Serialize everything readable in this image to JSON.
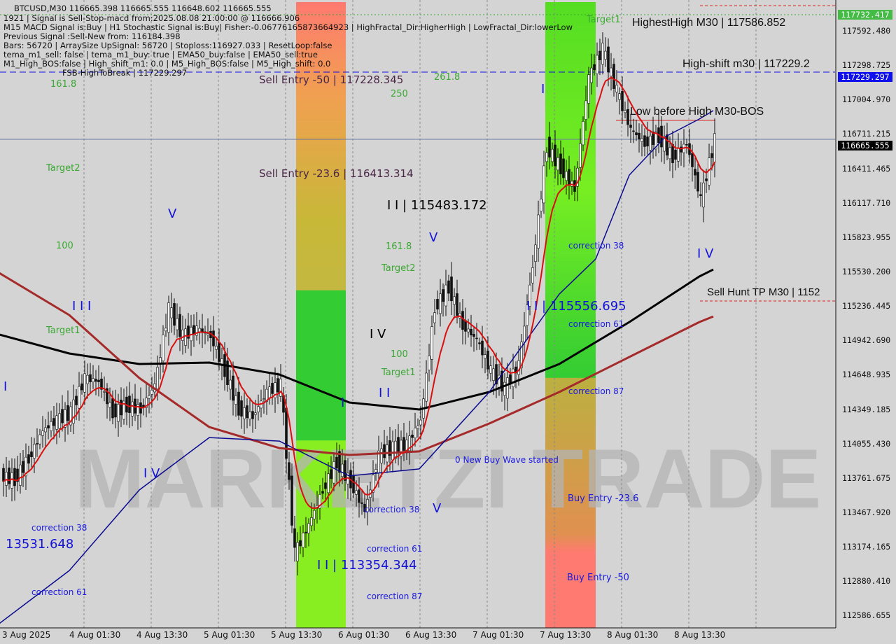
{
  "header": {
    "symbol_line": "BTCUSD,M30  116665.398 116665.555 116648.602 116665.555",
    "info_lines": [
      "1921 | Signal is Sell-Stop-macd from:2025.08.08 21:00:00 @ 116666.906",
      "M15 MACD Signal is:Buy | H1 Stochastic Signal is:Buy| Fisher:-0.06776165873664923 | HighFractal_Dir:HigherHigh | LowFractal_Dir:lowerLow",
      "Previous Signal :Sell-New from: 116184.398",
      "Bars: 56720 | ArraySize UpSignal: 56720 | Stoploss:116927.033 | ResetLoop:false",
      "tema_m1_sell: false | tema_m1_buy: true | EMA50_buy:false | EMA50_sell:true",
      "M1_High_BOS:false | High_shift_m1: 0.0 | M5_High_BOS:false | M5_High_shift: 0.0"
    ],
    "fsb_label": "FSB-HighToBreak | 117229.297"
  },
  "watermark": "MARKETZI TRADE",
  "annotations": {
    "highest_high": "HighestHigh   M30 | 117586.852",
    "high_shift": "High-shift m30 | 117229.2",
    "low_before_high": "Low before High   M30-BOS",
    "sell_hunt": "Sell Hunt TP M30 | 1152",
    "sell_entry_50": "Sell Entry -50 | 117228.345",
    "sell_entry_236": "Sell Entry -23.6 | 116413.314",
    "wave_115483": "I I | 115483.172",
    "wave_115556": "I I | 115556.695",
    "wave_113354": "I I | 113354.344",
    "left_price": "13531.648",
    "new_buy_wave": "0 New Buy Wave started",
    "buy_entry_236": "Buy Entry -23.6",
    "buy_entry_50": "Buy Entry -50",
    "corrections": [
      "correction 38",
      "correction 61",
      "correction 38",
      "correction 61",
      "correction 87",
      "correction 38",
      "correction 61",
      "correction 87"
    ],
    "fib_labels": [
      "161.8",
      "Target2",
      "100",
      "Target1",
      "261.8",
      "250",
      "161.8",
      "Target2",
      "100",
      "Target1",
      "Target1"
    ],
    "wave_labels": [
      "V",
      "I I I",
      "I V",
      "I V",
      "I I",
      "V",
      "I",
      "I V",
      "I",
      "I",
      "V"
    ]
  },
  "colors": {
    "background": "#d4d4d4",
    "candle": "#111111",
    "ema_fast": "#d81010",
    "ma_black": "#000000",
    "ma_brown": "#a52a2a",
    "ma_navy": "#0a0a90",
    "zone_green": "#33cc33",
    "zone_lime": "#88ee22",
    "zone_red": "#ff7070",
    "label_green": "#44bb44",
    "label_blue": "#0000ff",
    "label_black": "#000000"
  },
  "chart_data": {
    "type": "candlestick",
    "title": "BTCUSD,M30",
    "ylim": [
      112440,
      117900
    ],
    "y_ticks": [
      "117592.480",
      "117298.725",
      "117004.970",
      "116711.215",
      "116411.465",
      "116117.710",
      "115823.955",
      "115530.200",
      "115236.445",
      "114942.690",
      "114648.935",
      "114349.185",
      "114055.430",
      "113761.675",
      "113467.920",
      "113174.165",
      "112880.410",
      "112586.655"
    ],
    "x_ticks": [
      "3 Aug 2025",
      "4 Aug 01:30",
      "4 Aug 13:30",
      "5 Aug 01:30",
      "5 Aug 13:30",
      "6 Aug 01:30",
      "6 Aug 13:30",
      "7 Aug 01:30",
      "7 Aug 13:30",
      "8 Aug 01:30",
      "8 Aug 13:30"
    ],
    "price_tags": {
      "top_green": "117732.417",
      "fsb_blue": "117229.297",
      "current": "116665.555"
    },
    "levels": {
      "fsb_high_to_break": 117229.297,
      "current": 116665.555,
      "top": 117732.417
    },
    "closes_start": "2025-08-03 09:45",
    "closes_step_minutes": 150,
    "closes": [
      113786,
      113756,
      113936,
      114175,
      114265,
      114325,
      114625,
      114595,
      114325,
      114385,
      114355,
      114565,
      115224,
      114985,
      115045,
      114985,
      114685,
      114355,
      114295,
      114505,
      114565,
      113126,
      113366,
      113666,
      113906,
      113726,
      113486,
      113966,
      114025,
      114055,
      114265,
      115224,
      115404,
      115074,
      114955,
      114685,
      114535,
      114745,
      115584,
      116603,
      116423,
      116244,
      117203,
      117443,
      117083,
      116753,
      116633,
      116693,
      116513,
      116633,
      116154,
      116665
    ],
    "ma_series": [
      {
        "color": "#000000",
        "points": [
          [
            "2025-08-03 09:00",
            114997
          ],
          [
            "2025-08-03 21:30",
            114835
          ],
          [
            "2025-08-04 10:00",
            114745
          ],
          [
            "2025-08-04 22:30",
            114757
          ],
          [
            "2025-08-05 11:00",
            114655
          ],
          [
            "2025-08-05 23:30",
            114415
          ],
          [
            "2025-08-06 12:00",
            114355
          ],
          [
            "2025-08-07 00:30",
            114505
          ],
          [
            "2025-08-07 13:00",
            114745
          ],
          [
            "2025-08-08 01:30",
            115104
          ],
          [
            "2025-08-08 14:00",
            115494
          ],
          [
            "2025-08-08 16:30",
            115554
          ]
        ]
      },
      {
        "color": "#a52a2a",
        "points": [
          [
            "2025-08-03 09:00",
            115524
          ],
          [
            "2025-08-03 21:30",
            115164
          ],
          [
            "2025-08-04 10:00",
            114625
          ],
          [
            "2025-08-04 22:30",
            114205
          ],
          [
            "2025-08-05 11:00",
            114025
          ],
          [
            "2025-08-05 23:30",
            113966
          ],
          [
            "2025-08-06 12:00",
            113996
          ],
          [
            "2025-08-07 00:30",
            114235
          ],
          [
            "2025-08-07 13:00",
            114505
          ],
          [
            "2025-08-08 01:30",
            114805
          ],
          [
            "2025-08-08 14:00",
            115104
          ],
          [
            "2025-08-08 16:30",
            115152
          ]
        ]
      },
      {
        "color": "#0a0a90",
        "points": [
          [
            "2025-08-03 09:00",
            112522
          ],
          [
            "2025-08-03 21:30",
            112976
          ],
          [
            "2025-08-04 10:00",
            113666
          ],
          [
            "2025-08-04 22:30",
            114115
          ],
          [
            "2025-08-05 11:00",
            114085
          ],
          [
            "2025-08-05 23:30",
            113786
          ],
          [
            "2025-08-06 12:00",
            113846
          ],
          [
            "2025-08-07 00:30",
            114505
          ],
          [
            "2025-08-07 13:00",
            115344
          ],
          [
            "2025-08-07 19:30",
            115644
          ],
          [
            "2025-08-08 01:30",
            116363
          ],
          [
            "2025-08-08 08:00",
            116693
          ],
          [
            "2025-08-08 14:00",
            116843
          ],
          [
            "2025-08-08 16:30",
            116915
          ]
        ]
      }
    ]
  }
}
